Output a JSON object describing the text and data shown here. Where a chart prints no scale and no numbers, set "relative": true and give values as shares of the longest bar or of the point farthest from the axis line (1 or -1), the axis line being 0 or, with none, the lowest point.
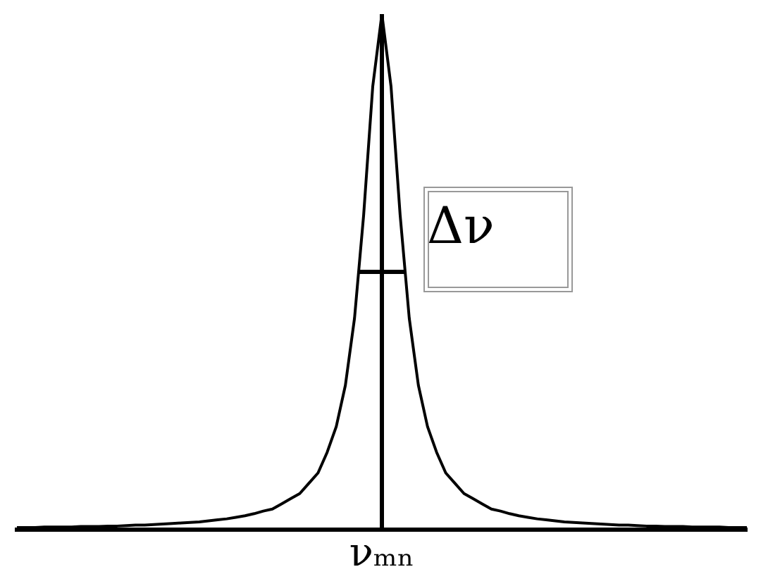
{
  "chart_data": {
    "type": "line",
    "relative": true,
    "color": "#000000",
    "categories": [
      null,
      null,
      null,
      null,
      null,
      null,
      null,
      null,
      null,
      null,
      null,
      null,
      null,
      null,
      null,
      null,
      null,
      null,
      null,
      null,
      null,
      null,
      null,
      null,
      null,
      null,
      null,
      null,
      null,
      null,
      null,
      null,
      null,
      null,
      null,
      null,
      null,
      null,
      null,
      null,
      null,
      null,
      null,
      null,
      null,
      null,
      null,
      null,
      null,
      null,
      null,
      null,
      null,
      null,
      null,
      null,
      null,
      null,
      null,
      null,
      null,
      null,
      null,
      null,
      null,
      null,
      null,
      null,
      null,
      null,
      null,
      null,
      null,
      null,
      null,
      null,
      null,
      null,
      null,
      null,
      null
    ],
    "values": [
      0.004,
      0.004,
      0.004,
      0.005,
      0.005,
      0.005,
      0.005,
      0.006,
      0.006,
      0.006,
      0.007,
      0.007,
      0.008,
      0.009,
      0.009,
      0.01,
      0.011,
      0.012,
      0.013,
      0.014,
      0.015,
      0.017,
      0.019,
      0.021,
      0.024,
      0.027,
      0.031,
      0.036,
      0.04,
      0.05,
      0.06,
      0.07,
      0.09,
      0.11,
      0.15,
      0.2,
      0.28,
      0.41,
      0.61,
      0.86,
      1,
      0.86,
      0.61,
      0.41,
      0.28,
      0.2,
      0.15,
      0.11,
      0.09,
      0.07,
      0.06,
      0.05,
      0.04,
      0.036,
      0.031,
      0.027,
      0.024,
      0.021,
      0.019,
      0.017,
      0.015,
      0.014,
      0.013,
      0.012,
      0.011,
      0.01,
      0.009,
      0.009,
      0.008,
      0.007,
      0.007,
      0.006,
      0.006,
      0.006,
      0.005,
      0.005,
      0.005,
      0.005,
      0.004,
      0.004,
      0.004
    ],
    "annotations": [
      "Δν",
      "νₘₙ"
    ]
  }
}
